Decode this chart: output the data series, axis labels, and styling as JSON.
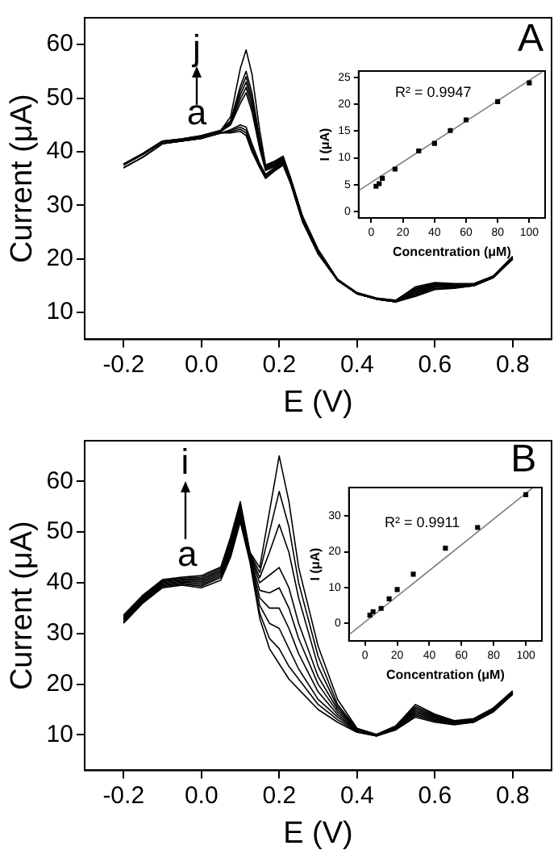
{
  "chart_data": [
    {
      "type": "line",
      "xlabel": "E (V)",
      "ylabel": "Current (μA)",
      "annotations": [
        "A",
        "j",
        "a"
      ],
      "xlim": [
        -0.3,
        0.9
      ],
      "ylim": [
        5,
        65
      ],
      "xticks": [
        -0.2,
        {
          "value": 0,
          "label": "0.0"
        },
        0.2,
        0.4,
        0.6,
        0.8
      ],
      "yticks": [
        10,
        20,
        30,
        40,
        50,
        60
      ],
      "marker": "none",
      "grid": false,
      "x": [
        -0.2,
        -0.15,
        -0.1,
        -0.05,
        0,
        0.05,
        0.075,
        0.1,
        0.115,
        0.13,
        0.15,
        0.165,
        0.19,
        0.21,
        0.23,
        0.26,
        0.3,
        0.35,
        0.4,
        0.45,
        0.5,
        0.55,
        0.6,
        0.65,
        0.7,
        0.75,
        0.8
      ],
      "series": [
        {
          "color": "#000000",
          "values": [
            37,
            39,
            41.5,
            42,
            42.5,
            43.5,
            43.5,
            43.8,
            43,
            40,
            37,
            35,
            36.5,
            37.5,
            34,
            27,
            21,
            16,
            13.5,
            12.5,
            12,
            13,
            14.3,
            14.5,
            15,
            16.5,
            20
          ]
        },
        {
          "color": "#000000",
          "values": [
            37,
            39,
            41.5,
            42,
            42.5,
            43.5,
            43.7,
            44.2,
            43.5,
            40.5,
            37.2,
            35.3,
            36.7,
            37.7,
            34,
            27,
            21,
            16,
            13.5,
            12.5,
            12,
            13.2,
            14.5,
            14.6,
            15,
            16.5,
            20
          ]
        },
        {
          "color": "#000000",
          "values": [
            37,
            39,
            41.5,
            42,
            42.5,
            43.5,
            43.9,
            44.6,
            44,
            41,
            37.5,
            35.6,
            36.9,
            37.9,
            34,
            27,
            21,
            16,
            13.5,
            12.5,
            12,
            13.4,
            14.7,
            14.7,
            15,
            16.5,
            20
          ]
        },
        {
          "color": "#000000",
          "values": [
            37,
            39,
            41.5,
            42,
            42.5,
            43.5,
            44.1,
            45,
            44.6,
            41.5,
            37.8,
            35.8,
            37.1,
            38.1,
            34,
            27,
            21,
            16,
            13.5,
            12.5,
            12,
            13.6,
            14.9,
            14.8,
            15,
            16.5,
            20
          ]
        },
        {
          "color": "#000000",
          "values": [
            37.5,
            39.5,
            41.8,
            42.2,
            42.8,
            43.8,
            45,
            49,
            51,
            47.5,
            40.5,
            36.5,
            37.3,
            38.3,
            34.5,
            27.5,
            21.5,
            16,
            13.5,
            12.5,
            12.1,
            13.8,
            15,
            14.9,
            15.1,
            16.6,
            20.2
          ]
        },
        {
          "color": "#000000",
          "values": [
            37.5,
            39.5,
            41.8,
            42.2,
            42.8,
            43.8,
            45.2,
            49.8,
            52,
            48.3,
            41,
            36.7,
            37.5,
            38.5,
            34.5,
            27.5,
            21.5,
            16,
            13.5,
            12.5,
            12.1,
            14,
            15.2,
            15,
            15.1,
            16.6,
            20.2
          ]
        },
        {
          "color": "#000000",
          "values": [
            37.6,
            39.6,
            41.9,
            42.3,
            42.9,
            43.9,
            45.4,
            50.6,
            53,
            49.2,
            41.5,
            36.9,
            37.7,
            38.7,
            34.7,
            27.7,
            21.6,
            16.1,
            13.6,
            12.6,
            12.2,
            14.2,
            15.3,
            15.1,
            15.2,
            16.7,
            20.3
          ]
        },
        {
          "color": "#000000",
          "values": [
            37.6,
            39.6,
            41.9,
            42.3,
            42.9,
            43.9,
            45.6,
            51.4,
            54,
            50,
            42,
            37.1,
            37.9,
            38.9,
            34.7,
            27.7,
            21.6,
            16.1,
            13.6,
            12.6,
            12.2,
            14.4,
            15.4,
            15.2,
            15.2,
            16.7,
            20.3
          ]
        },
        {
          "color": "#000000",
          "values": [
            37.7,
            39.7,
            42,
            42.4,
            43,
            44,
            45.8,
            52.2,
            55,
            51,
            42.5,
            37.3,
            38.1,
            39,
            34.9,
            27.9,
            21.7,
            16.2,
            13.7,
            12.7,
            12.3,
            14.6,
            15.5,
            15.3,
            15.3,
            16.8,
            20.4
          ]
        },
        {
          "color": "#000000",
          "values": [
            37.7,
            39.7,
            42,
            42.4,
            43,
            44,
            46.5,
            55.5,
            59,
            54.5,
            44,
            37.5,
            38.3,
            39.2,
            35,
            28,
            21.8,
            16.2,
            13.7,
            12.7,
            12.3,
            14.8,
            15.6,
            15.4,
            15.4,
            16.8,
            20.5
          ]
        }
      ]
    },
    {
      "type": "scatter",
      "xlabel": "Concentration (μM)",
      "ylabel": "I (μA)",
      "annotations": [
        "R² = 0.9947"
      ],
      "xlim": [
        -8,
        110
      ],
      "ylim": [
        -1.2,
        26.2
      ],
      "xticks": [
        0,
        20,
        40,
        60,
        80,
        100
      ],
      "yticks": [
        0,
        5,
        10,
        15,
        20,
        25
      ],
      "marker": "square",
      "grid": false,
      "x": [
        3,
        5,
        7,
        15,
        30,
        40,
        50,
        60,
        80,
        100
      ],
      "series": [
        {
          "color": "#000000",
          "values": [
            4.7,
            5.2,
            6.2,
            7.9,
            11.3,
            12.7,
            15.1,
            17.1,
            20.5,
            24
          ]
        },
        {
          "type": "line",
          "marker": "none",
          "color": "#808080",
          "x": [
            -8,
            108
          ],
          "values": [
            3.9,
            26
          ]
        }
      ]
    },
    {
      "type": "line",
      "xlabel": "E (V)",
      "ylabel": "Current (μA)",
      "annotations": [
        "B",
        "i",
        "a"
      ],
      "xlim": [
        -0.3,
        0.9
      ],
      "ylim": [
        3,
        68
      ],
      "xticks": [
        -0.2,
        {
          "value": 0,
          "label": "0.0"
        },
        0.2,
        0.4,
        0.6,
        0.8
      ],
      "yticks": [
        10,
        20,
        30,
        40,
        50,
        60
      ],
      "marker": "none",
      "grid": false,
      "x": [
        -0.2,
        -0.15,
        -0.1,
        -0.05,
        0,
        0.05,
        0.075,
        0.1,
        0.125,
        0.15,
        0.175,
        0.2,
        0.225,
        0.25,
        0.3,
        0.35,
        0.4,
        0.45,
        0.5,
        0.55,
        0.6,
        0.65,
        0.7,
        0.75,
        0.8
      ],
      "series": [
        {
          "color": "#000000",
          "values": [
            32,
            36,
            39,
            39.5,
            39,
            40.5,
            45,
            52,
            44,
            33,
            27,
            24,
            21,
            19,
            15,
            12.5,
            10.5,
            9.8,
            11,
            13.5,
            12.5,
            12,
            12.5,
            14.5,
            18
          ]
        },
        {
          "color": "#000000",
          "values": [
            32.2,
            36.2,
            39.2,
            39.7,
            39.3,
            41,
            45.5,
            52.5,
            44.5,
            34,
            29,
            27,
            23.5,
            21,
            16,
            13,
            10.6,
            9.8,
            11.1,
            13.8,
            12.7,
            12.1,
            12.5,
            14.6,
            18
          ]
        },
        {
          "color": "#000000",
          "values": [
            32.4,
            36.4,
            39.4,
            39.9,
            39.6,
            41.3,
            46,
            53,
            44.8,
            35.5,
            32,
            31,
            27,
            23,
            17,
            13.5,
            10.7,
            9.8,
            11.2,
            14.1,
            12.9,
            12.2,
            12.6,
            14.7,
            18.1
          ]
        },
        {
          "color": "#000000",
          "values": [
            32.6,
            36.6,
            39.6,
            40.1,
            39.9,
            41.6,
            46.5,
            53.5,
            45,
            37,
            35,
            35,
            31,
            26,
            18.5,
            14,
            10.8,
            9.8,
            11.3,
            14.4,
            13.1,
            12.3,
            12.7,
            14.8,
            18.2
          ]
        },
        {
          "color": "#000000",
          "values": [
            32.8,
            36.8,
            39.8,
            40.3,
            40.2,
            41.9,
            47,
            54,
            45.2,
            38.5,
            38,
            39,
            35,
            29,
            20,
            14.5,
            10.9,
            9.9,
            11.4,
            14.7,
            13.3,
            12.4,
            12.8,
            14.9,
            18.3
          ]
        },
        {
          "color": "#000000",
          "values": [
            33,
            37,
            40,
            40.5,
            40.5,
            42.2,
            47.5,
            54.5,
            45.4,
            40,
            41.5,
            43,
            39,
            32,
            21.5,
            15,
            11,
            9.9,
            11.5,
            15,
            13.5,
            12.5,
            12.9,
            15,
            18.4
          ]
        },
        {
          "color": "#000000",
          "values": [
            33.2,
            37.2,
            40.2,
            40.7,
            40.8,
            42.5,
            48,
            55,
            45.6,
            41,
            46,
            51.5,
            46,
            37,
            23.5,
            15.5,
            11.1,
            10,
            11.6,
            15.3,
            13.7,
            12.6,
            13,
            15.1,
            18.5
          ]
        },
        {
          "color": "#000000",
          "values": [
            33.4,
            37.4,
            40.4,
            40.9,
            41.1,
            42.8,
            48.5,
            55.5,
            45.8,
            42,
            50,
            58,
            51,
            40,
            25.5,
            16,
            11.2,
            10,
            11.7,
            15.6,
            13.9,
            12.7,
            13.1,
            15.2,
            18.6
          ]
        },
        {
          "color": "#000000",
          "values": [
            33.6,
            37.6,
            40.6,
            41.1,
            41.4,
            43.1,
            49,
            56,
            46,
            43,
            54,
            65,
            56,
            43,
            27.5,
            17,
            11.3,
            10.1,
            11.8,
            16,
            14.1,
            12.8,
            13.2,
            15.3,
            18.7
          ]
        }
      ]
    },
    {
      "type": "scatter",
      "xlabel": "Concentration (μM)",
      "ylabel": "I (μA)",
      "annotations": [
        "R² = 0.9911"
      ],
      "xlim": [
        -10,
        110
      ],
      "ylim": [
        -5,
        38
      ],
      "xticks": [
        0,
        20,
        40,
        60,
        80,
        100
      ],
      "yticks": [
        0,
        10,
        20,
        30
      ],
      "marker": "square",
      "grid": false,
      "x": [
        3,
        5,
        10,
        15,
        20,
        30,
        50,
        70,
        100
      ],
      "series": [
        {
          "color": "#000000",
          "values": [
            2.2,
            3.2,
            4.1,
            6.8,
            9.4,
            13.7,
            21,
            26.8,
            36
          ]
        },
        {
          "type": "line",
          "marker": "none",
          "color": "#808080",
          "x": [
            -10,
            104
          ],
          "values": [
            -3.3,
            37.8
          ]
        }
      ]
    }
  ]
}
